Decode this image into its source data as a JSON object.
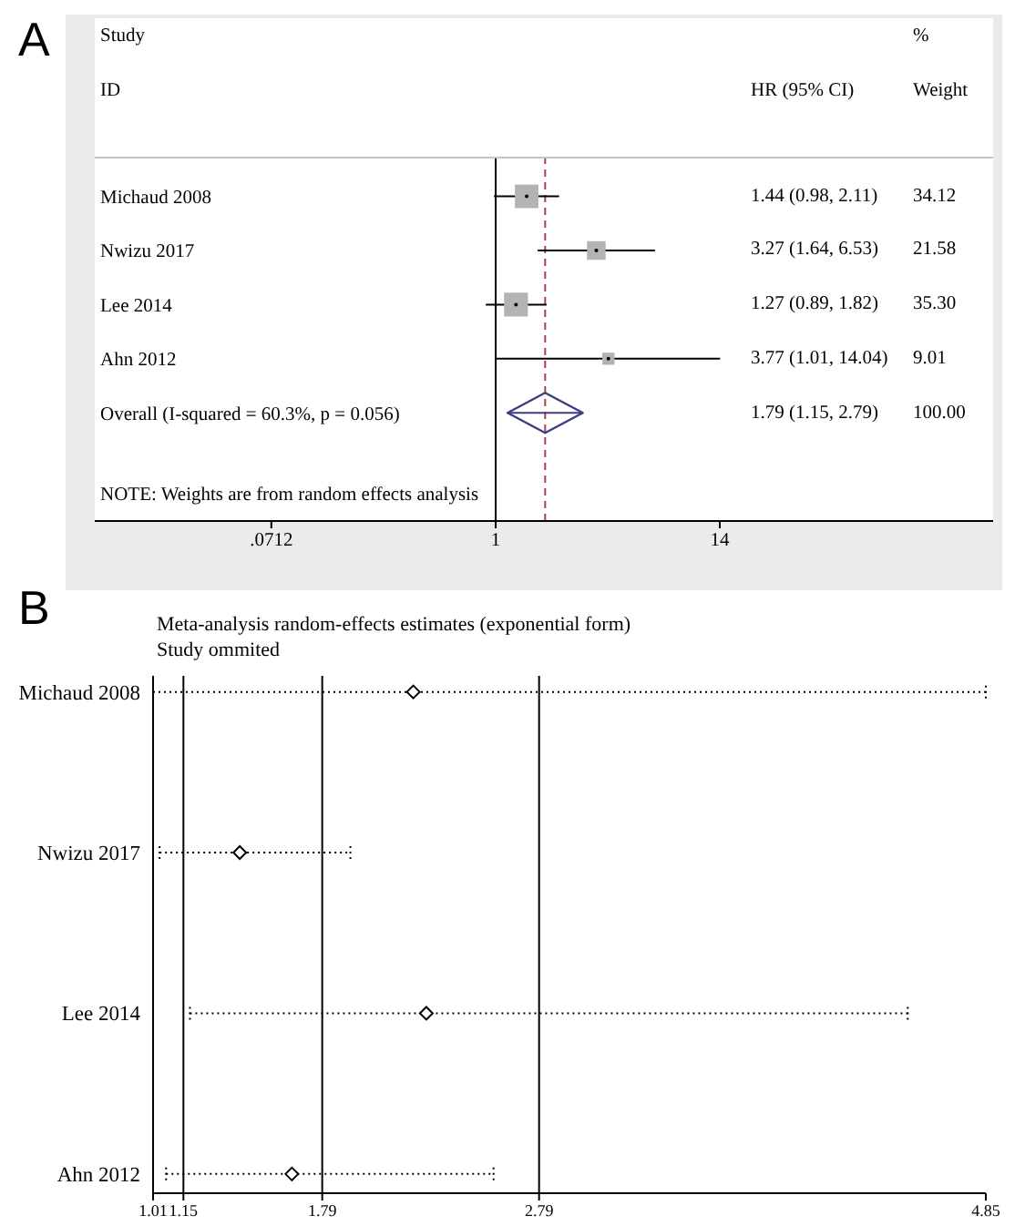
{
  "chart_data": [
    {
      "type": "scatter",
      "orientation": "horizontal",
      "categories": [
        "Michaud 2008",
        "Nwizu 2017",
        "Lee 2014",
        "Ahn 2012",
        "Overall (I-squared = 60.3%, p = 0.056)"
      ],
      "series": [
        {
          "type": "bubble",
          "marker": "square",
          "color": "#b3b3b3",
          "values": [
            1.44,
            3.27,
            1.27,
            3.77,
            null
          ],
          "errors": [
            [
              0.98,
              2.11
            ],
            [
              1.64,
              6.53
            ],
            [
              0.89,
              1.82
            ],
            [
              1.01,
              14.04
            ],
            null
          ],
          "sizes": [
            0.97,
            0.61,
            1,
            0.26,
            null
          ]
        },
        {
          "marker": "diamond",
          "color": "#3c3c80",
          "values": [
            null,
            null,
            null,
            null,
            1.79
          ],
          "errors": [
            null,
            null,
            null,
            null,
            [
              1.15,
              2.79
            ]
          ]
        }
      ],
      "log": "x",
      "xlim": [
        0.0089,
        350
      ],
      "xticks": [
        {
          "value": 0.0712,
          "label": ".0712"
        },
        1,
        14
      ],
      "ref_lines": [
        {
          "axis": "x",
          "value": 1,
          "color": "#000000"
        },
        {
          "axis": "x",
          "value": 1.79,
          "color": "#a8434c",
          "line_style": "dashed"
        }
      ],
      "annotations": [
        "A",
        "Study",
        "ID",
        "HR (95% CI)",
        "%",
        "Weight",
        "1.44 (0.98, 2.11)",
        "3.27 (1.64, 6.53)",
        "1.27 (0.89, 1.82)",
        "3.77 (1.01, 14.04)",
        "1.79 (1.15, 2.79)",
        "34.12",
        "21.58",
        "35.30",
        "9.01",
        "100.00",
        "NOTE: Weights are from random effects analysis"
      ]
    },
    {
      "type": "scatter",
      "orientation": "horizontal",
      "title": "Meta-analysis random-effects estimates (exponential form)",
      "subtitle": "Study ommited",
      "categories": [
        "Michaud 2008",
        "Nwizu 2017",
        "Lee 2014",
        "Ahn 2012"
      ],
      "values": [
        2.21,
        1.41,
        2.27,
        1.65
      ],
      "errors": [
        [
          1.01,
          4.85
        ],
        [
          1.04,
          1.92
        ],
        [
          1.18,
          4.49
        ],
        [
          1.07,
          2.58
        ]
      ],
      "color": "#000000",
      "marker": "diamond",
      "line_style": "dotted",
      "xlim": [
        1.01,
        4.85
      ],
      "xticks": [
        1.01,
        1.15,
        1.79,
        2.79,
        4.85
      ],
      "ref_lines": [
        {
          "axis": "x",
          "value": 1.15,
          "color": "#000000"
        },
        {
          "axis": "x",
          "value": 1.79,
          "color": "#000000"
        },
        {
          "axis": "x",
          "value": 2.79,
          "color": "#000000"
        }
      ],
      "annotations": [
        "B"
      ]
    }
  ]
}
